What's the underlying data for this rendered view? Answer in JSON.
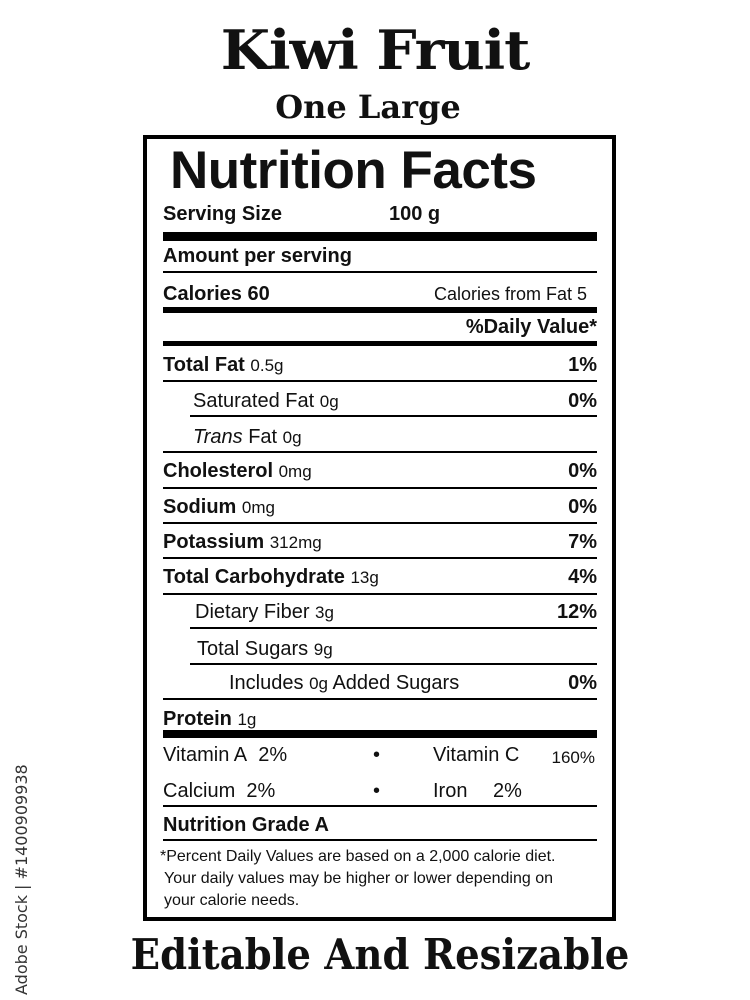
{
  "title": "Kiwi Fruit",
  "subtitle": "One Large",
  "footer": "Editable And Resizable",
  "watermark": "Adobe Stock | #1400909938",
  "label": {
    "heading": "Nutrition Facts",
    "serving_size_label": "Serving Size",
    "serving_size_value": "100 g",
    "amount_per_serving": "Amount per serving",
    "calories": "Calories 60",
    "calories_from_fat": "Calories from Fat 5",
    "daily_value_header": "%Daily Value*",
    "nutrients": [
      {
        "name": "Total Fat",
        "amount": "0.5g",
        "dv": "1%"
      },
      {
        "name": "Saturated Fat",
        "amount": "0g",
        "dv": "0%"
      },
      {
        "name_italic": "Trans",
        "name": "Fat",
        "amount": "0g",
        "dv": ""
      },
      {
        "name": "Cholesterol",
        "amount": "0mg",
        "dv": "0%"
      },
      {
        "name": "Sodium",
        "amount": "0mg",
        "dv": "0%"
      },
      {
        "name": "Potassium",
        "amount": "312mg",
        "dv": "7%"
      },
      {
        "name": "Total Carbohydrate",
        "amount": "13g",
        "dv": "4%"
      },
      {
        "name": "Dietary Fiber",
        "amount": "3g",
        "dv": "12%"
      },
      {
        "name": "Total Sugars",
        "amount": "9g",
        "dv": ""
      },
      {
        "name": "Includes",
        "amount": "0g",
        "suffix": "Added Sugars",
        "dv": "0%"
      },
      {
        "name": "Protein",
        "amount": "1g",
        "dv": ""
      }
    ],
    "vitamins": {
      "vitamin_a": "Vitamin A",
      "vitamin_a_value": "2%",
      "vitamin_c": "Vitamin C",
      "vitamin_c_value": "160%",
      "calcium": "Calcium",
      "calcium_value": "2%",
      "iron": "Iron",
      "iron_value": "2%",
      "bullet": "•"
    },
    "grade": "Nutrition Grade A",
    "footnote": [
      "*Percent Daily Values are based on a 2,000 calorie diet.",
      "Your daily values may be higher or lower depending on",
      "your calorie needs."
    ]
  }
}
